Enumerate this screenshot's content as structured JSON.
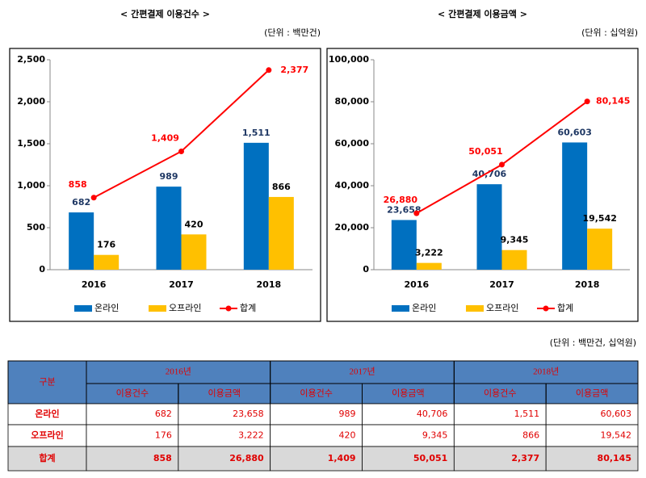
{
  "chart_data": [
    {
      "type": "bar",
      "title": "< 간편결제 이용건수 >",
      "unit": "(단위 : 백만건)",
      "categories": [
        "2016",
        "2017",
        "2018"
      ],
      "series": [
        {
          "name": "온라인",
          "type": "bar",
          "color": "#0070c0",
          "label_color": "#1f3864",
          "values": [
            682,
            989,
            1511
          ],
          "value_labels": [
            "682",
            "989",
            "1,511"
          ]
        },
        {
          "name": "오프라인",
          "type": "bar",
          "color": "#ffc000",
          "label_color": "#000000",
          "values": [
            176,
            420,
            866
          ],
          "value_labels": [
            "176",
            "420",
            "866"
          ]
        },
        {
          "name": "합계",
          "type": "line",
          "color": "#ff0000",
          "label_color": "#ff0000",
          "values": [
            858,
            1409,
            2377
          ],
          "value_labels": [
            "858",
            "1,409",
            "2,377"
          ]
        }
      ],
      "ylim": [
        0,
        2500
      ],
      "yticks": [
        0,
        500,
        {
          "value": 1000,
          "label": "1,000"
        },
        {
          "value": 1500,
          "label": "1,500"
        },
        {
          "value": 2000,
          "label": "2,000"
        },
        {
          "value": 2500,
          "label": "2,500"
        }
      ],
      "grid": false,
      "legend": "bottom"
    },
    {
      "type": "bar",
      "title": "< 간편결제 이용금액 >",
      "unit": "(단위 : 십억원)",
      "categories": [
        "2016",
        "2017",
        "2018"
      ],
      "series": [
        {
          "name": "온라인",
          "type": "bar",
          "color": "#0070c0",
          "label_color": "#1f3864",
          "values": [
            23658,
            40706,
            60603
          ],
          "value_labels": [
            "23,658",
            "40,706",
            "60,603"
          ]
        },
        {
          "name": "오프라인",
          "type": "bar",
          "color": "#ffc000",
          "label_color": "#000000",
          "values": [
            3222,
            9345,
            19542
          ],
          "value_labels": [
            "3,222",
            "9,345",
            "19,542"
          ]
        },
        {
          "name": "합계",
          "type": "line",
          "color": "#ff0000",
          "label_color": "#ff0000",
          "values": [
            26880,
            50051,
            80145
          ],
          "value_labels": [
            "26,880",
            "50,051",
            "80,145"
          ]
        }
      ],
      "ylim": [
        0,
        100000
      ],
      "yticks": [
        0,
        {
          "value": 20000,
          "label": "20,000"
        },
        {
          "value": 40000,
          "label": "40,000"
        },
        {
          "value": 60000,
          "label": "60,000"
        },
        {
          "value": 80000,
          "label": "80,000"
        },
        {
          "value": 100000,
          "label": "100,000"
        }
      ],
      "grid": false,
      "legend": "bottom"
    }
  ],
  "table": {
    "unit": "(단위 : 백만건, 십억원)",
    "header": "구분",
    "years": [
      "2016년",
      "2017년",
      "2018년"
    ],
    "subheaders": [
      "이용건수",
      "이용금액",
      "이용건수",
      "이용금액",
      "이용건수",
      "이용금액"
    ],
    "rows": [
      [
        "온라인",
        "682",
        "23,658",
        "989",
        "40,706",
        "1,511",
        "60,603"
      ],
      [
        "오프라인",
        "176",
        "3,222",
        "420",
        "9,345",
        "866",
        "19,542"
      ],
      [
        "합계",
        "858",
        "26,880",
        "1,409",
        "50,051",
        "2,377",
        "80,145"
      ]
    ]
  }
}
